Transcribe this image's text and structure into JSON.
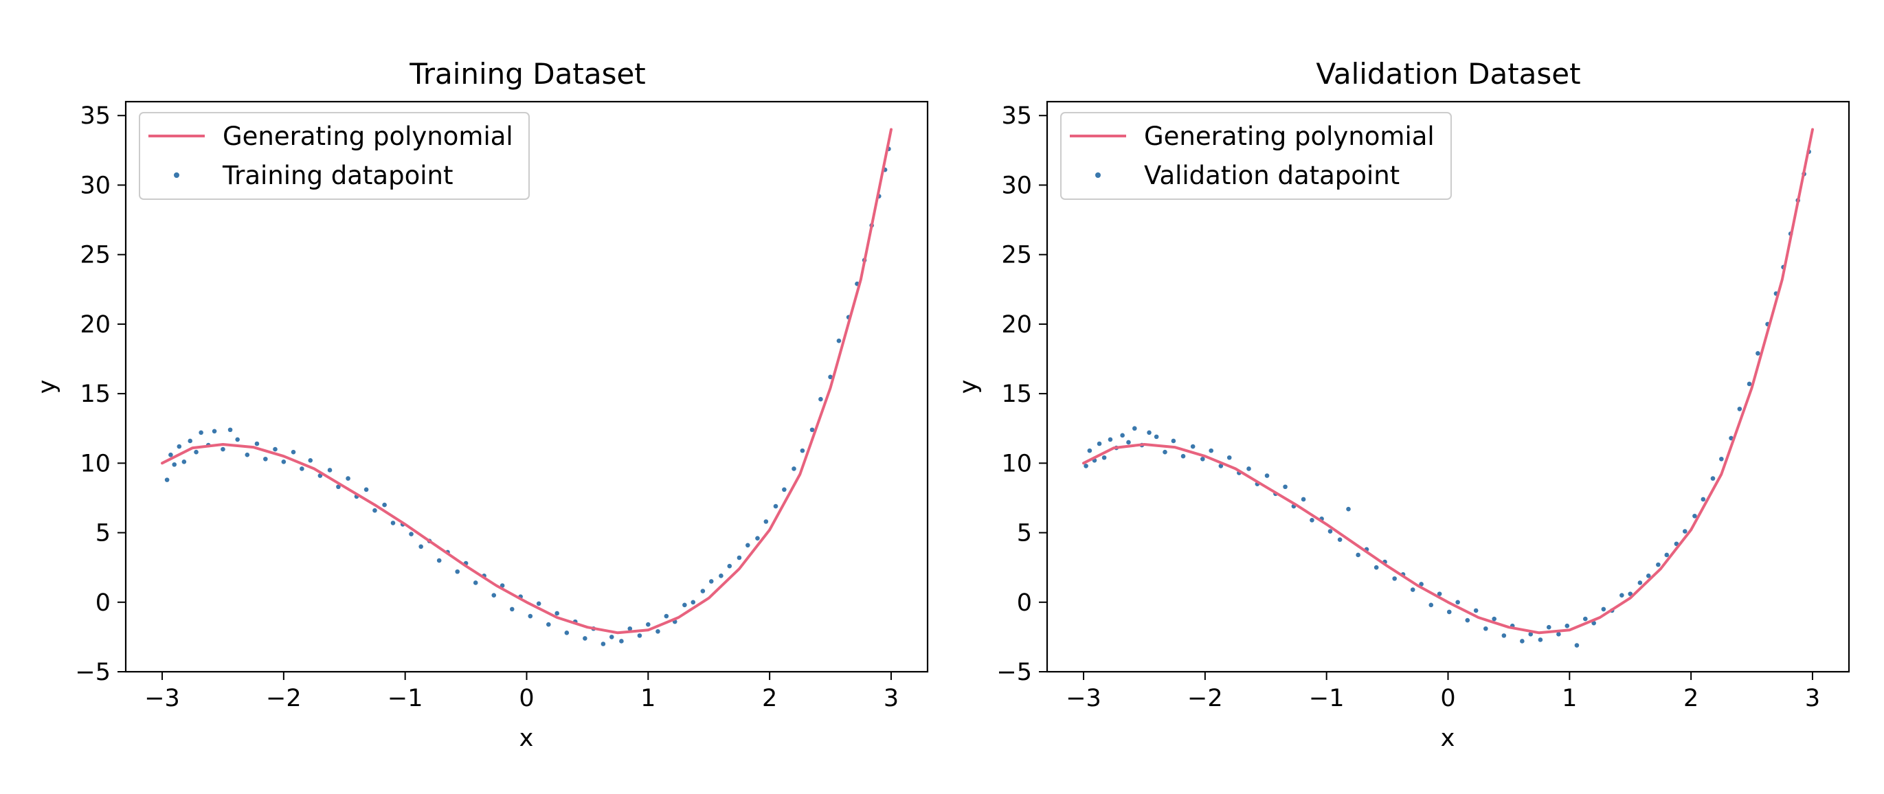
{
  "colors": {
    "curve": "#e8627e",
    "points": "#3a78ad",
    "frame": "#000000",
    "legend_border": "#cccccc",
    "background": "#ffffff"
  },
  "chart_data": [
    {
      "type": "scatter",
      "title": "Training Dataset",
      "xlabel": "x",
      "ylabel": "y",
      "xlim": [
        -3.3,
        3.3
      ],
      "ylim": [
        -5,
        36
      ],
      "xticks": [
        -3,
        -2,
        -1,
        0,
        1,
        2,
        3
      ],
      "xtick_labels": [
        "−3",
        "−2",
        "−1",
        "0",
        "1",
        "2",
        "3"
      ],
      "yticks": [
        -5,
        0,
        5,
        10,
        15,
        20,
        25,
        30,
        35
      ],
      "ytick_labels": [
        "−5",
        "0",
        "5",
        "10",
        "15",
        "20",
        "25",
        "30",
        "35"
      ],
      "grid": false,
      "legend": {
        "placement": "upper-left",
        "entries": [
          {
            "label": "Generating polynomial",
            "kind": "line"
          },
          {
            "label": "Training datapoint",
            "kind": "point"
          }
        ]
      },
      "series": [
        {
          "name": "Generating polynomial",
          "kind": "line",
          "x": [
            -3.0,
            -2.75,
            -2.5,
            -2.25,
            -2.0,
            -1.75,
            -1.5,
            -1.25,
            -1.0,
            -0.75,
            -0.5,
            -0.25,
            0.0,
            0.25,
            0.5,
            0.75,
            1.0,
            1.25,
            1.5,
            1.75,
            2.0,
            2.25,
            2.5,
            2.75,
            3.0
          ],
          "y": [
            10.0,
            11.1,
            11.35,
            11.15,
            10.5,
            9.6,
            8.3,
            7.0,
            5.6,
            4.1,
            2.6,
            1.2,
            0.0,
            -1.1,
            -1.8,
            -2.2,
            -2.0,
            -1.1,
            0.3,
            2.4,
            5.2,
            9.2,
            15.4,
            23.2,
            34.0
          ]
        },
        {
          "name": "Training datapoint",
          "kind": "scatter",
          "x": [
            -2.96,
            -2.93,
            -2.9,
            -2.86,
            -2.82,
            -2.77,
            -2.72,
            -2.68,
            -2.62,
            -2.57,
            -2.5,
            -2.44,
            -2.38,
            -2.3,
            -2.22,
            -2.15,
            -2.07,
            -2.0,
            -1.92,
            -1.85,
            -1.78,
            -1.7,
            -1.62,
            -1.55,
            -1.47,
            -1.4,
            -1.32,
            -1.25,
            -1.17,
            -1.1,
            -1.02,
            -0.95,
            -0.87,
            -0.8,
            -0.72,
            -0.65,
            -0.57,
            -0.5,
            -0.42,
            -0.35,
            -0.27,
            -0.2,
            -0.12,
            -0.05,
            0.03,
            0.1,
            0.18,
            0.25,
            0.33,
            0.4,
            0.48,
            0.55,
            0.63,
            0.7,
            0.78,
            0.85,
            0.93,
            1.0,
            1.08,
            1.15,
            1.22,
            1.3,
            1.37,
            1.45,
            1.52,
            1.6,
            1.67,
            1.75,
            1.82,
            1.9,
            1.97,
            2.05,
            2.12,
            2.2,
            2.27,
            2.35,
            2.42,
            2.5,
            2.57,
            2.65,
            2.72,
            2.78,
            2.84,
            2.9,
            2.95,
            2.98
          ],
          "y": [
            8.8,
            10.6,
            9.9,
            11.2,
            10.1,
            11.6,
            10.8,
            12.2,
            11.3,
            12.3,
            11.0,
            12.4,
            11.7,
            10.6,
            11.4,
            10.3,
            11.0,
            10.1,
            10.8,
            9.6,
            10.2,
            9.1,
            9.5,
            8.3,
            8.9,
            7.6,
            8.1,
            6.6,
            7.0,
            5.7,
            5.6,
            4.9,
            4.0,
            4.4,
            3.0,
            3.6,
            2.2,
            2.8,
            1.4,
            1.9,
            0.5,
            1.2,
            -0.5,
            0.4,
            -1.0,
            -0.1,
            -1.6,
            -0.8,
            -2.2,
            -1.4,
            -2.6,
            -1.9,
            -3.0,
            -2.5,
            -2.8,
            -1.9,
            -2.4,
            -1.6,
            -2.1,
            -1.0,
            -1.4,
            -0.2,
            0.0,
            0.8,
            1.5,
            1.9,
            2.6,
            3.2,
            4.1,
            4.6,
            5.8,
            6.9,
            8.1,
            9.6,
            10.9,
            12.4,
            14.6,
            16.2,
            18.8,
            20.5,
            22.9,
            24.6,
            27.1,
            29.2,
            31.1,
            32.6
          ]
        }
      ]
    },
    {
      "type": "scatter",
      "title": "Validation Dataset",
      "xlabel": "x",
      "ylabel": "y",
      "xlim": [
        -3.3,
        3.3
      ],
      "ylim": [
        -5,
        36
      ],
      "xticks": [
        -3,
        -2,
        -1,
        0,
        1,
        2,
        3
      ],
      "xtick_labels": [
        "−3",
        "−2",
        "−1",
        "0",
        "1",
        "2",
        "3"
      ],
      "yticks": [
        -5,
        0,
        5,
        10,
        15,
        20,
        25,
        30,
        35
      ],
      "ytick_labels": [
        "−5",
        "0",
        "5",
        "10",
        "15",
        "20",
        "25",
        "30",
        "35"
      ],
      "grid": false,
      "legend": {
        "placement": "upper-left",
        "entries": [
          {
            "label": "Generating polynomial",
            "kind": "line"
          },
          {
            "label": "Validation datapoint",
            "kind": "point"
          }
        ]
      },
      "series": [
        {
          "name": "Generating polynomial",
          "kind": "line",
          "x": [
            -3.0,
            -2.75,
            -2.5,
            -2.25,
            -2.0,
            -1.75,
            -1.5,
            -1.25,
            -1.0,
            -0.75,
            -0.5,
            -0.25,
            0.0,
            0.25,
            0.5,
            0.75,
            1.0,
            1.25,
            1.5,
            1.75,
            2.0,
            2.25,
            2.5,
            2.75,
            3.0
          ],
          "y": [
            10.0,
            11.1,
            11.35,
            11.15,
            10.5,
            9.6,
            8.3,
            7.0,
            5.6,
            4.1,
            2.6,
            1.2,
            0.0,
            -1.1,
            -1.8,
            -2.2,
            -2.0,
            -1.1,
            0.3,
            2.4,
            5.2,
            9.2,
            15.4,
            23.2,
            34.0
          ]
        },
        {
          "name": "Validation datapoint",
          "kind": "scatter",
          "x": [
            -2.98,
            -2.95,
            -2.91,
            -2.87,
            -2.83,
            -2.78,
            -2.73,
            -2.68,
            -2.63,
            -2.58,
            -2.52,
            -2.46,
            -2.4,
            -2.33,
            -2.26,
            -2.18,
            -2.1,
            -2.02,
            -1.95,
            -1.87,
            -1.8,
            -1.72,
            -1.64,
            -1.57,
            -1.49,
            -1.42,
            -1.34,
            -1.27,
            -1.19,
            -1.12,
            -1.04,
            -0.97,
            -0.89,
            -0.82,
            -0.74,
            -0.67,
            -0.59,
            -0.52,
            -0.44,
            -0.37,
            -0.29,
            -0.22,
            -0.14,
            -0.07,
            0.01,
            0.08,
            0.16,
            0.23,
            0.31,
            0.38,
            0.46,
            0.53,
            0.61,
            0.68,
            0.76,
            0.83,
            0.91,
            0.98,
            1.06,
            1.13,
            1.2,
            1.28,
            1.35,
            1.43,
            1.5,
            1.58,
            1.65,
            1.73,
            1.8,
            1.88,
            1.95,
            2.03,
            2.1,
            2.18,
            2.25,
            2.33,
            2.4,
            2.48,
            2.55,
            2.63,
            2.7,
            2.76,
            2.82,
            2.88,
            2.93,
            2.97
          ],
          "y": [
            9.8,
            10.9,
            10.2,
            11.4,
            10.4,
            11.7,
            11.1,
            12.0,
            11.5,
            12.5,
            11.3,
            12.2,
            11.9,
            10.8,
            11.6,
            10.5,
            11.2,
            10.3,
            10.9,
            9.8,
            10.4,
            9.3,
            9.6,
            8.5,
            9.1,
            7.8,
            8.3,
            6.9,
            7.4,
            5.9,
            6.0,
            5.1,
            4.5,
            6.7,
            3.4,
            3.8,
            2.5,
            2.9,
            1.7,
            2.0,
            0.9,
            1.3,
            -0.2,
            0.6,
            -0.7,
            0.0,
            -1.3,
            -0.6,
            -1.9,
            -1.2,
            -2.4,
            -1.7,
            -2.8,
            -2.3,
            -2.7,
            -1.8,
            -2.3,
            -1.7,
            -3.1,
            -1.2,
            -1.5,
            -0.5,
            -0.6,
            0.5,
            0.6,
            1.4,
            1.9,
            2.7,
            3.4,
            4.2,
            5.1,
            6.2,
            7.4,
            8.9,
            10.3,
            11.8,
            13.9,
            15.7,
            17.9,
            20.0,
            22.2,
            24.1,
            26.5,
            28.9,
            30.8,
            32.4
          ]
        }
      ]
    }
  ]
}
